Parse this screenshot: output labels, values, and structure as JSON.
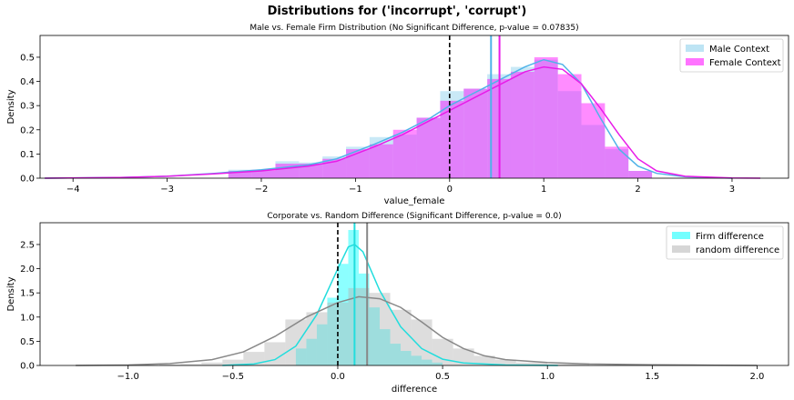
{
  "figure_title": "Distributions for ('incorrupt', 'corrupt')",
  "chart_data": [
    {
      "type": "histogram",
      "title": "Male vs. Female Firm Distribution (No Significant Difference, p-value = 0.07835)",
      "xlabel": "value_female",
      "ylabel": "Density",
      "xlim": [
        -4.35,
        3.6
      ],
      "ylim": [
        0,
        0.59
      ],
      "xticks": [
        -4,
        -3,
        -2,
        -1,
        0,
        1,
        2,
        3
      ],
      "yticks": [
        0.0,
        0.1,
        0.2,
        0.3,
        0.4,
        0.5
      ],
      "tick_labels_x": [
        "−4",
        "−3",
        "−2",
        "−1",
        "0",
        "1",
        "2",
        "3"
      ],
      "tick_labels_y": [
        "0.0",
        "0.1",
        "0.2",
        "0.3",
        "0.4",
        "0.5"
      ],
      "grid": false,
      "legend_position": "top-right",
      "zero_line": 0,
      "series": [
        {
          "name": "Male Context",
          "color": "#87ceeb",
          "kde_color": "#4fb3e8",
          "mean": 0.44,
          "bin_edges": [
            -2.35,
            -2.1,
            -1.85,
            -1.6,
            -1.35,
            -1.1,
            -0.85,
            -0.6,
            -0.35,
            -0.1,
            0.15,
            0.4,
            0.65,
            0.9,
            1.15,
            1.4,
            1.65,
            1.9,
            2.15
          ],
          "densities": [
            0.035,
            0.03,
            0.07,
            0.065,
            0.09,
            0.13,
            0.17,
            0.18,
            0.25,
            0.36,
            0.37,
            0.43,
            0.46,
            0.49,
            0.36,
            0.22,
            0.12,
            0.03
          ],
          "kde": [
            [
              -4.3,
              0.0
            ],
            [
              -3.5,
              0.003
            ],
            [
              -3.0,
              0.008
            ],
            [
              -2.5,
              0.02
            ],
            [
              -2.0,
              0.035
            ],
            [
              -1.5,
              0.055
            ],
            [
              -1.2,
              0.08
            ],
            [
              -1.0,
              0.11
            ],
            [
              -0.8,
              0.14
            ],
            [
              -0.5,
              0.19
            ],
            [
              -0.2,
              0.25
            ],
            [
              0.0,
              0.3
            ],
            [
              0.2,
              0.34
            ],
            [
              0.4,
              0.38
            ],
            [
              0.6,
              0.42
            ],
            [
              0.8,
              0.46
            ],
            [
              1.0,
              0.49
            ],
            [
              1.2,
              0.47
            ],
            [
              1.4,
              0.39
            ],
            [
              1.6,
              0.25
            ],
            [
              1.8,
              0.12
            ],
            [
              2.0,
              0.05
            ],
            [
              2.2,
              0.02
            ],
            [
              2.5,
              0.006
            ],
            [
              3.0,
              0.0
            ]
          ]
        },
        {
          "name": "Female Context",
          "color": "#ff00ff",
          "kde_color": "#e81ce8",
          "mean": 0.53,
          "bin_edges": [
            -2.35,
            -2.1,
            -1.85,
            -1.6,
            -1.35,
            -1.1,
            -0.85,
            -0.6,
            -0.35,
            -0.1,
            0.15,
            0.4,
            0.65,
            0.9,
            1.15,
            1.4,
            1.65,
            1.9,
            2.15
          ],
          "densities": [
            0.03,
            0.035,
            0.06,
            0.06,
            0.08,
            0.12,
            0.14,
            0.2,
            0.25,
            0.32,
            0.37,
            0.41,
            0.44,
            0.5,
            0.43,
            0.31,
            0.13,
            0.03
          ],
          "kde": [
            [
              -4.3,
              0.0
            ],
            [
              -3.5,
              0.003
            ],
            [
              -3.0,
              0.008
            ],
            [
              -2.5,
              0.018
            ],
            [
              -2.0,
              0.03
            ],
            [
              -1.5,
              0.05
            ],
            [
              -1.2,
              0.07
            ],
            [
              -1.0,
              0.1
            ],
            [
              -0.8,
              0.13
            ],
            [
              -0.5,
              0.18
            ],
            [
              -0.2,
              0.24
            ],
            [
              0.0,
              0.28
            ],
            [
              0.2,
              0.32
            ],
            [
              0.4,
              0.36
            ],
            [
              0.6,
              0.4
            ],
            [
              0.8,
              0.44
            ],
            [
              1.0,
              0.46
            ],
            [
              1.2,
              0.45
            ],
            [
              1.4,
              0.39
            ],
            [
              1.6,
              0.29
            ],
            [
              1.8,
              0.18
            ],
            [
              2.0,
              0.08
            ],
            [
              2.2,
              0.03
            ],
            [
              2.5,
              0.008
            ],
            [
              3.0,
              0.001
            ],
            [
              3.3,
              0.0
            ]
          ]
        }
      ]
    },
    {
      "type": "histogram",
      "title": "Corporate vs. Random Difference (Significant Difference, p-value = 0.0)",
      "xlabel": "difference",
      "ylabel": "Density",
      "xlim": [
        -1.42,
        2.15
      ],
      "ylim": [
        0,
        2.95
      ],
      "xticks": [
        -1.0,
        -0.5,
        0.0,
        0.5,
        1.0,
        1.5,
        2.0
      ],
      "yticks": [
        0.0,
        0.5,
        1.0,
        1.5,
        2.0,
        2.5
      ],
      "tick_labels_x": [
        "−1.0",
        "−0.5",
        "0.0",
        "0.5",
        "1.0",
        "1.5",
        "2.0"
      ],
      "tick_labels_y": [
        "0.0",
        "0.5",
        "1.0",
        "1.5",
        "2.0",
        "2.5"
      ],
      "grid": false,
      "legend_position": "top-right",
      "zero_line": 0,
      "series": [
        {
          "name": "Firm difference",
          "color": "#00ffff",
          "kde_color": "#22dddd",
          "mean": 0.08,
          "bin_edges": [
            -0.2,
            -0.15,
            -0.1,
            -0.05,
            0.0,
            0.05,
            0.1,
            0.15,
            0.2,
            0.25,
            0.3,
            0.35,
            0.4,
            0.45,
            0.5
          ],
          "densities": [
            0.35,
            0.55,
            0.85,
            1.4,
            2.1,
            2.8,
            1.9,
            1.2,
            0.75,
            0.45,
            0.3,
            0.2,
            0.12,
            0.06
          ],
          "kde": [
            [
              -0.55,
              0.0
            ],
            [
              -0.4,
              0.03
            ],
            [
              -0.3,
              0.12
            ],
            [
              -0.2,
              0.4
            ],
            [
              -0.1,
              1.05
            ],
            [
              0.0,
              2.0
            ],
            [
              0.05,
              2.45
            ],
            [
              0.08,
              2.5
            ],
            [
              0.12,
              2.35
            ],
            [
              0.2,
              1.55
            ],
            [
              0.3,
              0.8
            ],
            [
              0.4,
              0.35
            ],
            [
              0.5,
              0.13
            ],
            [
              0.6,
              0.05
            ],
            [
              0.8,
              0.01
            ],
            [
              1.05,
              0.0
            ]
          ]
        },
        {
          "name": "random difference",
          "color": "#b4b4b4",
          "kde_color": "#888888",
          "mean": 0.14,
          "bin_edges": [
            -0.85,
            -0.75,
            -0.65,
            -0.55,
            -0.45,
            -0.35,
            -0.25,
            -0.15,
            -0.05,
            0.05,
            0.15,
            0.25,
            0.35,
            0.45,
            0.55,
            0.65,
            0.75,
            0.85,
            1.0,
            1.2
          ],
          "densities": [
            0.02,
            0.03,
            0.06,
            0.12,
            0.28,
            0.48,
            0.95,
            1.1,
            1.3,
            1.6,
            1.5,
            1.15,
            0.95,
            0.55,
            0.35,
            0.2,
            0.12,
            0.06,
            0.03
          ],
          "kde": [
            [
              -1.25,
              0.0
            ],
            [
              -1.0,
              0.01
            ],
            [
              -0.8,
              0.04
            ],
            [
              -0.6,
              0.12
            ],
            [
              -0.45,
              0.28
            ],
            [
              -0.3,
              0.6
            ],
            [
              -0.15,
              1.0
            ],
            [
              0.0,
              1.3
            ],
            [
              0.1,
              1.42
            ],
            [
              0.2,
              1.38
            ],
            [
              0.3,
              1.2
            ],
            [
              0.4,
              0.9
            ],
            [
              0.5,
              0.58
            ],
            [
              0.6,
              0.35
            ],
            [
              0.7,
              0.2
            ],
            [
              0.8,
              0.12
            ],
            [
              1.0,
              0.06
            ],
            [
              1.2,
              0.03
            ],
            [
              1.5,
              0.015
            ],
            [
              1.8,
              0.005
            ],
            [
              2.0,
              0.0
            ]
          ]
        }
      ]
    }
  ]
}
